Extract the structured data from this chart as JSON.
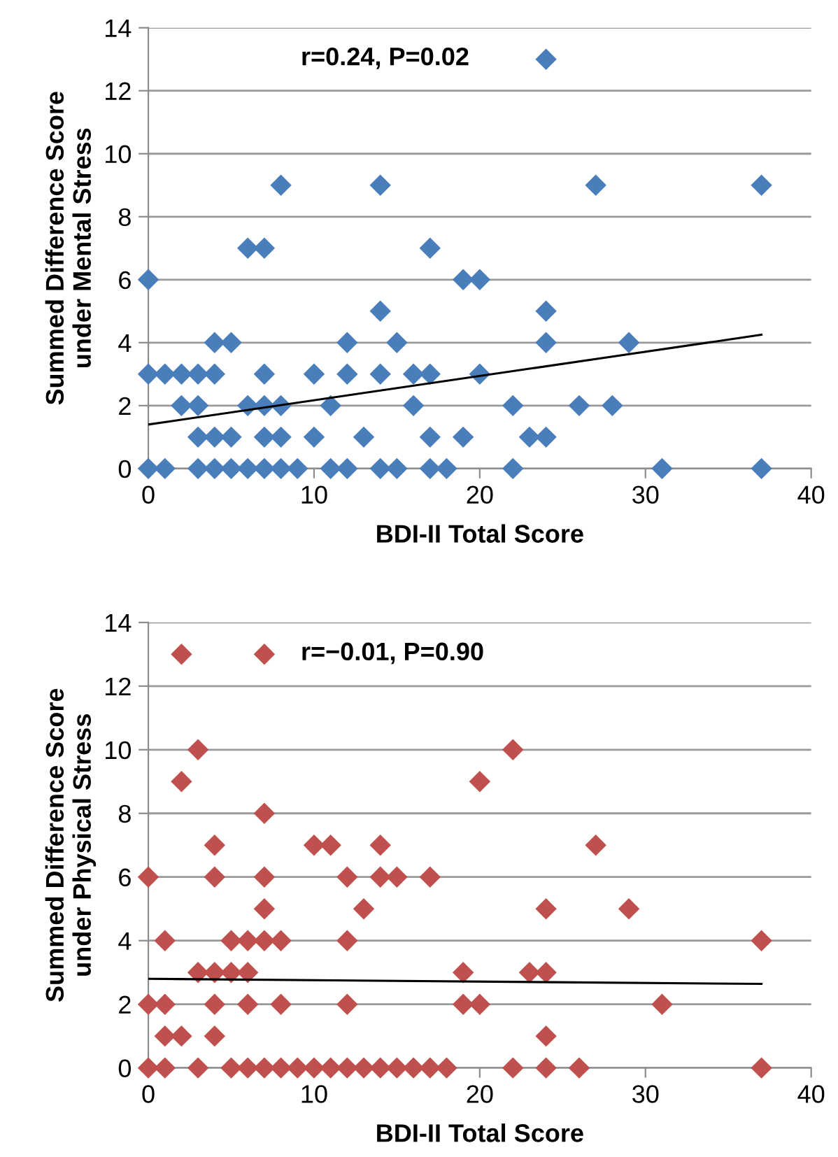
{
  "chart_data": [
    {
      "type": "scatter",
      "xlabel": "BDI-II Total Score",
      "ylabel": "Summed Difference Score\nunder Mental Stress",
      "annotations": [
        "r=0.24, P=0.02"
      ],
      "xlim": [
        0,
        40
      ],
      "ylim": [
        0,
        14
      ],
      "xticks": [
        0,
        10,
        20,
        30,
        40
      ],
      "yticks": [
        0,
        2,
        4,
        6,
        8,
        10,
        12,
        14
      ],
      "grid": "y",
      "legend": false,
      "marker": "diamond",
      "series": [
        {
          "color": "#4a7ebb",
          "x": [
            24,
            8,
            14,
            27,
            37,
            6,
            7,
            17,
            0,
            19,
            20,
            14,
            24,
            4,
            5,
            12,
            15,
            24,
            29,
            0,
            1,
            2,
            3,
            4,
            7,
            10,
            12,
            14,
            16,
            17,
            20,
            2,
            3,
            6,
            7,
            8,
            11,
            16,
            22,
            26,
            28,
            3,
            4,
            5,
            7,
            8,
            10,
            13,
            17,
            19,
            23,
            24,
            0,
            1,
            3,
            4,
            5,
            6,
            7,
            8,
            9,
            11,
            12,
            14,
            15,
            17,
            18,
            22,
            31,
            37
          ],
          "values": [
            13,
            9,
            9,
            9,
            9,
            7,
            7,
            7,
            6,
            6,
            6,
            5,
            5,
            4,
            4,
            4,
            4,
            4,
            4,
            3,
            3,
            3,
            3,
            3,
            3,
            3,
            3,
            3,
            3,
            3,
            3,
            2,
            2,
            2,
            2,
            2,
            2,
            2,
            2,
            2,
            2,
            1,
            1,
            1,
            1,
            1,
            1,
            1,
            1,
            1,
            1,
            1,
            0,
            0,
            0,
            0,
            0,
            0,
            0,
            0,
            0,
            0,
            0,
            0,
            0,
            0,
            0,
            0,
            0,
            0
          ]
        },
        {
          "type": "line",
          "color": "#000000",
          "x": [
            0,
            37
          ],
          "values": [
            1.4,
            4.25
          ],
          "marker": "none",
          "line_style": "solid"
        }
      ]
    },
    {
      "type": "scatter",
      "xlabel": "BDI-II Total Score",
      "ylabel": "Summed Difference Score\nunder Physical Stress",
      "annotations": [
        "r=−0.01, P=0.90"
      ],
      "xlim": [
        0,
        40
      ],
      "ylim": [
        0,
        14
      ],
      "xticks": [
        0,
        10,
        20,
        30,
        40
      ],
      "yticks": [
        0,
        2,
        4,
        6,
        8,
        10,
        12,
        14
      ],
      "grid": "y",
      "legend": false,
      "marker": "diamond",
      "series": [
        {
          "color": "#c0504d",
          "x": [
            2,
            7,
            3,
            22,
            2,
            20,
            7,
            4,
            10,
            11,
            14,
            27,
            0,
            4,
            7,
            12,
            14,
            15,
            17,
            7,
            13,
            24,
            29,
            1,
            5,
            6,
            7,
            8,
            12,
            37,
            3,
            4,
            5,
            6,
            19,
            23,
            24,
            0,
            1,
            4,
            6,
            8,
            12,
            19,
            20,
            31,
            1,
            2,
            4,
            24,
            0,
            1,
            3,
            5,
            6,
            7,
            8,
            9,
            10,
            11,
            12,
            13,
            14,
            15,
            16,
            17,
            18,
            22,
            24,
            26,
            37
          ],
          "values": [
            13,
            13,
            10,
            10,
            9,
            9,
            8,
            7,
            7,
            7,
            7,
            7,
            6,
            6,
            6,
            6,
            6,
            6,
            6,
            5,
            5,
            5,
            5,
            4,
            4,
            4,
            4,
            4,
            4,
            4,
            3,
            3,
            3,
            3,
            3,
            3,
            3,
            2,
            2,
            2,
            2,
            2,
            2,
            2,
            2,
            2,
            1,
            1,
            1,
            1,
            0,
            0,
            0,
            0,
            0,
            0,
            0,
            0,
            0,
            0,
            0,
            0,
            0,
            0,
            0,
            0,
            0,
            0,
            0,
            0,
            0
          ]
        },
        {
          "type": "line",
          "color": "#000000",
          "x": [
            0,
            37
          ],
          "values": [
            2.8,
            2.64
          ],
          "marker": "none",
          "line_style": "solid"
        }
      ]
    }
  ]
}
